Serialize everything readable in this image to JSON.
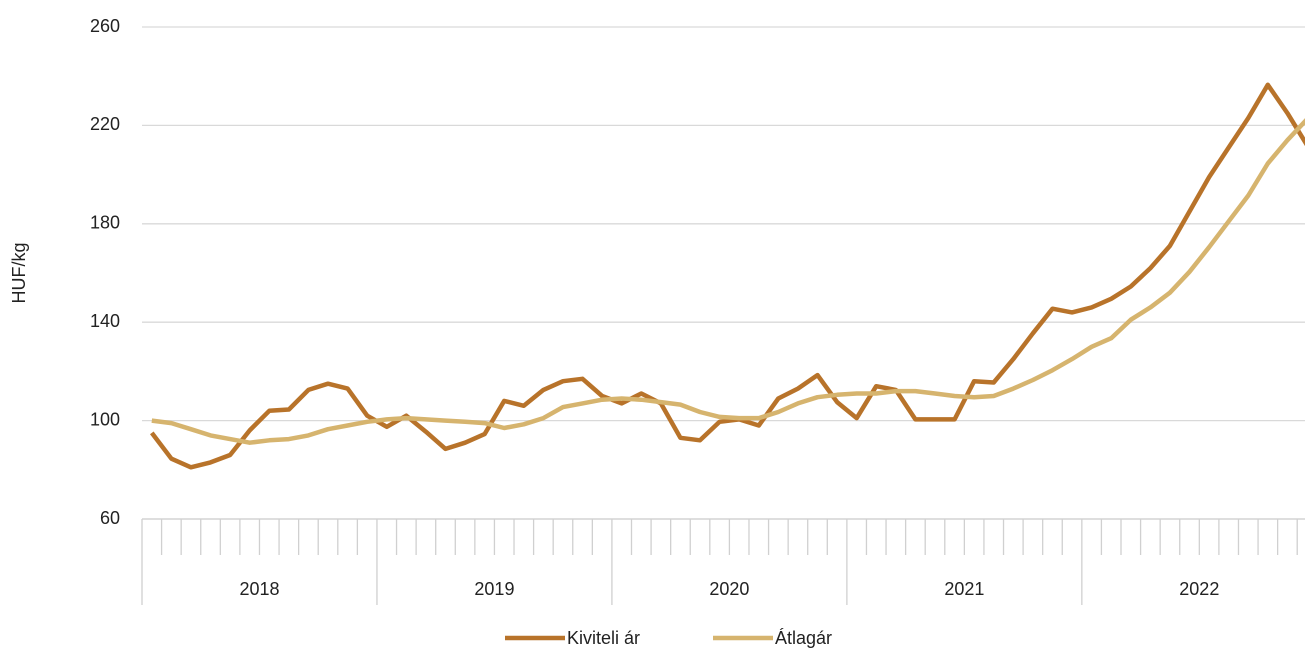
{
  "chart_data": {
    "type": "line",
    "y_label": "HUF/kg",
    "ylim": [
      60,
      260
    ],
    "yticks": [
      60,
      100,
      140,
      180,
      220,
      260
    ],
    "grid": true,
    "legend": "bottom",
    "year_labels": [
      "2018",
      "2019",
      "2020",
      "2021",
      "2022"
    ],
    "categories": [
      null,
      null,
      null,
      null,
      null,
      null,
      null,
      null,
      null,
      null,
      null,
      null,
      null,
      null,
      null,
      null,
      null,
      null,
      null,
      null,
      null,
      null,
      null,
      null,
      null,
      null,
      null,
      null,
      null,
      null,
      null,
      null,
      null,
      null,
      null,
      null,
      null,
      null,
      null,
      null,
      null,
      null,
      null,
      null,
      null,
      null,
      null,
      null,
      null,
      null,
      null,
      null,
      null,
      null,
      null,
      null,
      null,
      null,
      null,
      null
    ],
    "series": [
      {
        "name": "Kiviteli ár",
        "color": "#b8732a",
        "values": [
          95,
          84.5,
          81,
          83,
          86,
          96,
          104,
          104.5,
          112.5,
          115,
          113,
          102,
          97.5,
          102,
          95.5,
          88.5,
          91,
          94.5,
          108,
          106,
          112.5,
          116,
          117,
          110,
          107,
          111,
          107,
          93,
          92,
          99.5,
          100.5,
          98,
          109,
          113,
          118.5,
          107.5,
          101,
          114,
          112.5,
          100.5,
          100.5,
          100.5,
          116,
          115.5,
          125,
          135.5,
          145.5,
          144,
          146,
          149.5,
          154.5,
          162,
          171,
          185,
          199,
          211,
          223,
          236.5,
          225,
          212
        ]
      },
      {
        "name": "Átlagár",
        "color": "#d6b46e",
        "values": [
          100,
          99,
          96.5,
          94,
          92.5,
          91,
          92,
          92.5,
          94,
          96.5,
          98,
          99.5,
          100.5,
          101,
          100.5,
          100,
          99.5,
          99,
          97,
          98.5,
          101,
          105.5,
          107,
          108.5,
          109,
          108.5,
          107.5,
          106.5,
          103.5,
          101.5,
          101,
          101,
          103.5,
          107,
          109.5,
          110.5,
          111,
          111,
          112,
          112,
          111,
          110,
          109.5,
          110,
          113,
          116.5,
          120.5,
          125,
          130,
          133.5,
          141,
          146,
          152,
          160.5,
          170.5,
          181,
          191.5,
          204.5,
          214,
          222.5
        ]
      }
    ]
  }
}
